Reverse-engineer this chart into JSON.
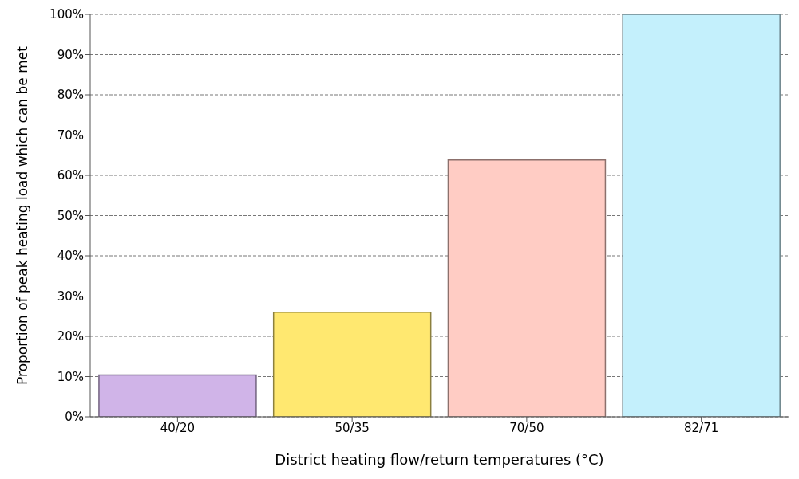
{
  "chart_data": {
    "type": "bar",
    "xlabel": "District heating flow/return temperatures (°C)",
    "ylabel": "Proportion of peak heating load which can be met",
    "categories": [
      "40/20",
      "50/35",
      "70/50",
      "82/71"
    ],
    "values": [
      10.4,
      26.0,
      63.8,
      100
    ],
    "colors": [
      "#d0b4e8",
      "#ffe870",
      "#ffccc4",
      "#c4f0fc"
    ],
    "ylim": [
      0,
      100
    ],
    "yticks": [
      {
        "value": 0,
        "label": "0%"
      },
      {
        "value": 10,
        "label": "10%"
      },
      {
        "value": 20,
        "label": "20%"
      },
      {
        "value": 30,
        "label": "30%"
      },
      {
        "value": 40,
        "label": "40%"
      },
      {
        "value": 50,
        "label": "50%"
      },
      {
        "value": 60,
        "label": "60%"
      },
      {
        "value": 70,
        "label": "70%"
      },
      {
        "value": 80,
        "label": "80%"
      },
      {
        "value": 90,
        "label": "90%"
      },
      {
        "value": 100,
        "label": "100%"
      }
    ],
    "grid": "y",
    "legend": false
  }
}
